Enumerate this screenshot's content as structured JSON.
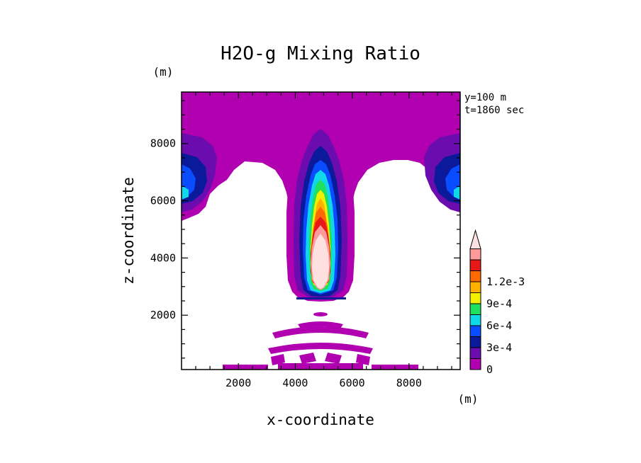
{
  "chart_data": {
    "type": "heatmap",
    "title": "H2O-g Mixing Ratio",
    "xlabel": "x-coordinate",
    "ylabel": "z-coordinate",
    "x_unit": "(m)",
    "y_unit": "(m)",
    "xlim": [
      0,
      9800
    ],
    "ylim": [
      100,
      9800
    ],
    "x_ticks": [
      2000,
      4000,
      6000,
      8000
    ],
    "y_ticks": [
      2000,
      4000,
      6000,
      8000
    ],
    "info": [
      "y=100 m",
      "t=1860 sec"
    ],
    "colorbar": {
      "levels": [
        0,
        0.00015,
        0.0003,
        0.00045,
        0.0006,
        0.00075,
        0.0009,
        0.00105,
        0.0012,
        0.00135
      ],
      "labels": [
        {
          "level": 0,
          "text": "0"
        },
        {
          "level": 0.0003,
          "text": "3e-4"
        },
        {
          "level": 0.0006,
          "text": "6e-4"
        },
        {
          "level": 0.0009,
          "text": "9e-4"
        },
        {
          "level": 0.0012,
          "text": "1.2e-3"
        }
      ],
      "colors": [
        "#b000b0",
        "#6a0cae",
        "#0a1a9a",
        "#0a4cff",
        "#10d8e8",
        "#20e060",
        "#f0f000",
        "#ffb000",
        "#ff6a00",
        "#e81818",
        "#ff9a9a",
        "#ffe0e0"
      ]
    },
    "regions": [
      {
        "name": "top-layer",
        "level": 0.0001,
        "color": "#b000b0"
      },
      {
        "name": "central-plume",
        "level_range": [
          0,
          0.00135
        ],
        "x_center": 5000,
        "z_range": [
          2600,
          8800
        ]
      },
      {
        "name": "left-edge-plume",
        "level_range": [
          0,
          0.00045
        ],
        "x": 0,
        "z_range": [
          5400,
          8200
        ]
      },
      {
        "name": "right-edge-plume",
        "level_range": [
          0,
          0.00045
        ],
        "x": 9800,
        "z_range": [
          5400,
          8200
        ]
      },
      {
        "name": "low-level-bands",
        "level": 0.0001,
        "z_range": [
          100,
          2100
        ]
      }
    ]
  }
}
